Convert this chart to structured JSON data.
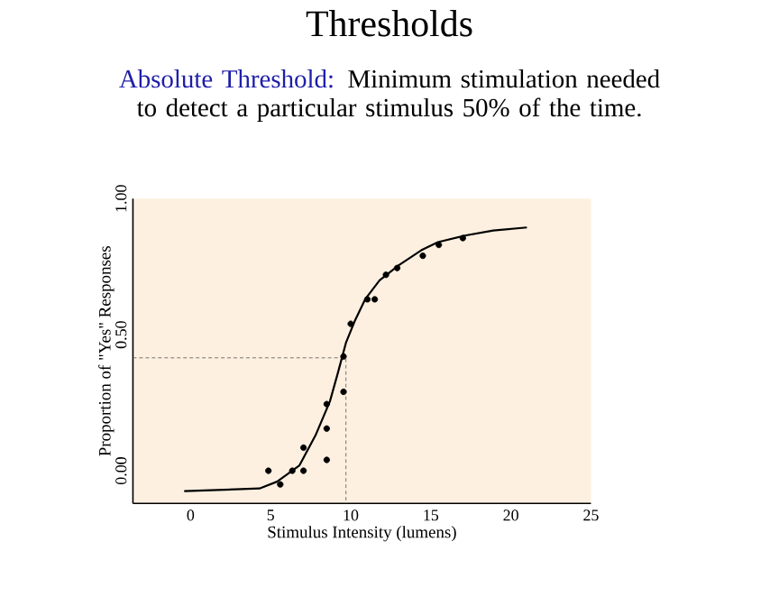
{
  "chart_data": {
    "type": "scatter",
    "title": "Thresholds",
    "subtitle": "Absolute Threshold:",
    "annotations": [
      "Minimum stimulation needed to detect a particular stimulus 50% of the time."
    ],
    "xlabel": "Stimulus Intensity (lumens)",
    "ylabel": "Proportion of \"Yes\" Responses",
    "xlim": [
      -3.6,
      25
    ],
    "ylim": [
      -0.12,
      1.0
    ],
    "xticks": [
      0,
      5,
      10,
      15,
      20,
      25
    ],
    "yticks": [
      {
        "value": 0,
        "label": "0.00"
      },
      {
        "value": 0.5,
        "label": "0.50"
      },
      {
        "value": 1.0,
        "label": "1.00"
      }
    ],
    "series": [
      {
        "color": "#000000",
        "marker": "circle",
        "x": [
          4.86,
          5.6,
          6.35,
          7.05,
          7.05,
          8.5,
          8.5,
          8.5,
          9.55,
          9.55,
          10.0,
          11.04,
          11.5,
          12.2,
          12.9,
          14.5,
          15.5,
          17.0
        ],
        "values": [
          0.0,
          -0.05,
          0.0,
          0.0,
          0.085,
          0.04,
          0.155,
          0.245,
          0.29,
          0.42,
          0.54,
          0.63,
          0.63,
          0.72,
          0.745,
          0.79,
          0.83,
          0.855
        ]
      },
      {
        "type": "line",
        "color": "#000000",
        "line_style": "solid",
        "x": [
          -0.4,
          4.3,
          5.4,
          6.8,
          7.8,
          8.7,
          9.2,
          9.7,
          10.25,
          10.9,
          11.8,
          13.0,
          14.4,
          15.45,
          17.2,
          18.9,
          21.0
        ],
        "values": [
          -0.075,
          -0.065,
          -0.04,
          0.02,
          0.13,
          0.255,
          0.36,
          0.47,
          0.55,
          0.63,
          0.7,
          0.755,
          0.81,
          0.84,
          0.865,
          0.883,
          0.894
        ]
      },
      {
        "type": "line",
        "color": "#555555",
        "line_style": "dashed",
        "x": [
          -3.6,
          9.7,
          9.7
        ],
        "values": [
          0.415,
          0.415,
          -0.12
        ]
      }
    ]
  }
}
